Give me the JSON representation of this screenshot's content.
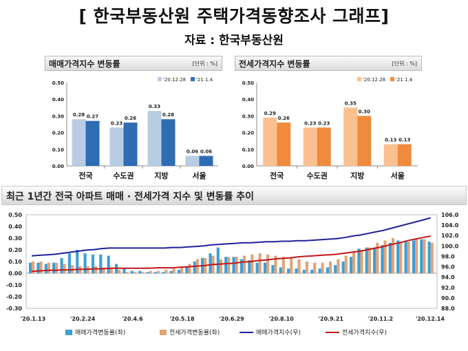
{
  "header": {
    "title": "[ 한국부동산원 주택가격동향조사 그래프]",
    "source": "자료 : 한국부동산원"
  },
  "colors": {
    "sale_light": "#b8cce4",
    "sale_dark": "#2e6db4",
    "jeonse_light": "#fac090",
    "jeonse_dark": "#f08a3c",
    "index_sale_line": "#1f1f9a",
    "index_jeonse_line": "#c0161b",
    "bar_sale_bottom": "#3a9fd6",
    "bar_jeonse_bottom": "#e3a277"
  },
  "chart_data": [
    {
      "type": "bar",
      "title": "매매가격지수 변동률",
      "unit": "[단위 : %]",
      "categories": [
        "전국",
        "수도권",
        "지방",
        "서울"
      ],
      "series": [
        {
          "name": "'20.12.28",
          "values": [
            0.28,
            0.23,
            0.33,
            0.06
          ],
          "labels": [
            "0.28",
            "0.23",
            "0.33",
            "0.06"
          ]
        },
        {
          "name": "'21.1.4",
          "values": [
            0.27,
            0.26,
            0.28,
            0.06
          ],
          "labels": [
            "0.27",
            "0.26",
            "0.28",
            "0.06"
          ]
        }
      ],
      "ylim": [
        0,
        0.5
      ],
      "yticks": [
        "0.00",
        "0.10",
        "0.20",
        "0.30",
        "0.40",
        "0.50"
      ],
      "legend": "top-right"
    },
    {
      "type": "bar",
      "title": "전세가격지수 변동률",
      "unit": "[단위 : %]",
      "categories": [
        "전국",
        "수도권",
        "지방",
        "서울"
      ],
      "series": [
        {
          "name": "'20.12.28",
          "values": [
            0.29,
            0.23,
            0.35,
            0.13
          ],
          "labels": [
            "0.29",
            "0.23",
            "0.35",
            "0.13"
          ]
        },
        {
          "name": "'21.1.4",
          "values": [
            0.26,
            0.23,
            0.3,
            0.13
          ],
          "labels": [
            "0.26",
            "0.23",
            "0.30",
            "0.13"
          ]
        }
      ],
      "ylim": [
        0,
        0.5
      ],
      "yticks": [
        "0.00",
        "0.10",
        "0.20",
        "0.30",
        "0.40",
        "0.50"
      ],
      "legend": "top-right"
    },
    {
      "type": "bar",
      "title": "최근 1년간 전국 아파트 매매 · 전세가격 지수 및 변동률 추이",
      "x_ticks": [
        "'20.1.13",
        "'20.2.24",
        "'20.4.6",
        "'20.5.18",
        "'20.6.29",
        "'20.8.10",
        "'20.9.21",
        "'20.11.2",
        "'20.12.14"
      ],
      "y_left": {
        "ylim": [
          -0.3,
          0.5
        ],
        "ticks": [
          "0.50",
          "0.40",
          "0.30",
          "0.20",
          "0.10",
          "0.00",
          "-0.10",
          "-0.20",
          "-0.30"
        ]
      },
      "y_right": {
        "ylim": [
          88.0,
          106.0
        ],
        "ticks": [
          "106.0",
          "104.0",
          "102.0",
          "100.0",
          "98.0",
          "96.0",
          "94.0",
          "92.0",
          "90.0",
          "88.0"
        ]
      },
      "series": [
        {
          "name": "매매가격변동률(좌)",
          "type": "bar",
          "axis": "left",
          "values": [
            0.09,
            0.09,
            0.08,
            0.09,
            0.13,
            0.17,
            0.2,
            0.17,
            0.16,
            0.16,
            0.15,
            0.08,
            0.04,
            0.02,
            0.02,
            0.01,
            0.01,
            0.01,
            0.02,
            0.03,
            0.05,
            0.1,
            0.13,
            0.17,
            0.22,
            0.14,
            0.14,
            0.12,
            0.11,
            0.09,
            0.09,
            0.07,
            0.05,
            0.04,
            0.04,
            0.03,
            0.03,
            0.04,
            0.05,
            0.07,
            0.1,
            0.14,
            0.21,
            0.22,
            0.22,
            0.24,
            0.26,
            0.28,
            0.27,
            0.28,
            0.29,
            0.27
          ]
        },
        {
          "name": "전세가격변동률(좌)",
          "type": "bar",
          "axis": "left",
          "values": [
            0.1,
            0.1,
            0.09,
            0.09,
            0.08,
            0.07,
            0.06,
            0.06,
            0.06,
            0.05,
            0.05,
            0.03,
            0.01,
            0.01,
            0.01,
            0.02,
            0.02,
            0.03,
            0.04,
            0.05,
            0.08,
            0.12,
            0.13,
            0.15,
            0.12,
            0.14,
            0.14,
            0.15,
            0.16,
            0.17,
            0.16,
            0.15,
            0.14,
            0.13,
            0.12,
            0.1,
            0.09,
            0.09,
            0.1,
            0.12,
            0.15,
            0.18,
            0.2,
            0.22,
            0.26,
            0.28,
            0.3,
            0.27,
            0.27,
            0.3,
            0.29,
            0.26
          ]
        },
        {
          "name": "매매가격지수(우)",
          "type": "line",
          "axis": "right",
          "values": [
            98.1,
            98.2,
            98.3,
            98.4,
            98.6,
            98.8,
            99.0,
            99.2,
            99.3,
            99.5,
            99.6,
            99.6,
            99.6,
            99.6,
            99.6,
            99.6,
            99.6,
            99.6,
            99.7,
            99.7,
            99.8,
            99.9,
            100.0,
            100.2,
            100.3,
            100.4,
            100.5,
            100.6,
            100.6,
            100.7,
            100.8,
            100.8,
            100.9,
            100.9,
            101.0,
            101.0,
            101.1,
            101.2,
            101.3,
            101.4,
            101.6,
            101.9,
            102.1,
            102.4,
            102.7,
            103.0,
            103.4,
            103.8,
            104.2,
            104.6,
            105.0,
            105.4
          ]
        },
        {
          "name": "전세가격지수(우)",
          "type": "line",
          "axis": "right",
          "values": [
            95.1,
            95.2,
            95.3,
            95.3,
            95.4,
            95.4,
            95.5,
            95.5,
            95.6,
            95.6,
            95.7,
            95.7,
            95.7,
            95.7,
            95.7,
            95.7,
            95.8,
            95.8,
            95.8,
            95.9,
            96.0,
            96.1,
            96.2,
            96.4,
            96.5,
            96.6,
            96.7,
            96.9,
            97.0,
            97.2,
            97.3,
            97.5,
            97.6,
            97.7,
            97.9,
            98.0,
            98.1,
            98.2,
            98.3,
            98.4,
            98.6,
            98.8,
            99.0,
            99.3,
            99.6,
            99.9,
            100.3,
            100.6,
            101.0,
            101.3,
            101.6,
            101.9
          ]
        }
      ],
      "legend": "bottom"
    }
  ]
}
